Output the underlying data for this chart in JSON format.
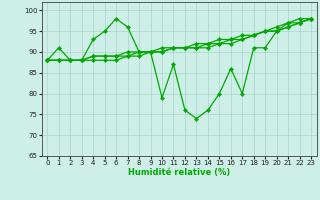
{
  "xlabel": "Humidité relative (%)",
  "xlim": [
    -0.5,
    23.5
  ],
  "ylim": [
    65,
    102
  ],
  "yticks": [
    65,
    70,
    75,
    80,
    85,
    90,
    95,
    100
  ],
  "xticks": [
    0,
    1,
    2,
    3,
    4,
    5,
    6,
    7,
    8,
    9,
    10,
    11,
    12,
    13,
    14,
    15,
    16,
    17,
    18,
    19,
    20,
    21,
    22,
    23
  ],
  "bg_color": "#ceeee8",
  "grid_color": "#aad4cc",
  "line_color": "#00aa00",
  "marker": "D",
  "markersize": 2.2,
  "linewidth": 0.9,
  "series": [
    [
      88,
      91,
      88,
      88,
      93,
      95,
      98,
      96,
      90,
      90,
      79,
      87,
      76,
      74,
      76,
      80,
      86,
      80,
      91,
      91,
      95,
      97,
      98,
      98
    ],
    [
      88,
      88,
      88,
      88,
      88,
      88,
      88,
      89,
      89,
      90,
      90,
      91,
      91,
      92,
      92,
      93,
      93,
      94,
      94,
      95,
      95,
      96,
      97,
      98
    ],
    [
      88,
      88,
      88,
      88,
      89,
      89,
      89,
      89,
      90,
      90,
      90,
      91,
      91,
      91,
      91,
      92,
      92,
      93,
      94,
      95,
      96,
      97,
      97,
      98
    ],
    [
      88,
      88,
      88,
      88,
      89,
      89,
      89,
      90,
      90,
      90,
      91,
      91,
      91,
      91,
      92,
      92,
      93,
      93,
      94,
      95,
      95,
      96,
      97,
      98
    ]
  ],
  "xlabel_fontsize": 6.0,
  "tick_labelsize": 5.0
}
